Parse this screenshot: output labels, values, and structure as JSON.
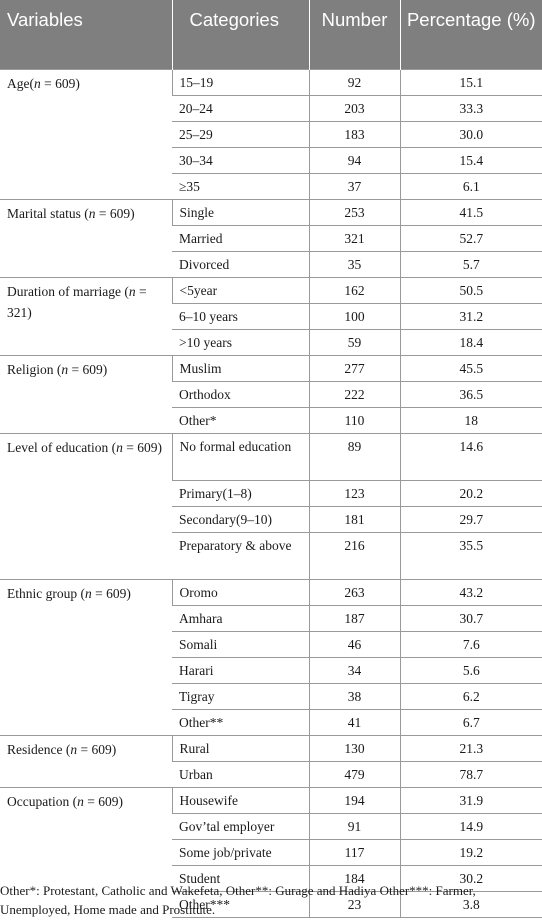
{
  "headers": [
    "Variables",
    "Categories",
    "Number",
    "Percentage (%)"
  ],
  "groups": [
    {
      "label": "Age(n = 609)",
      "rows": [
        {
          "cat": "15–19",
          "num": "92",
          "pct": "15.1"
        },
        {
          "cat": "20–24",
          "num": "203",
          "pct": "33.3"
        },
        {
          "cat": "25–29",
          "num": "183",
          "pct": "30.0"
        },
        {
          "cat": "30–34",
          "num": "94",
          "pct": "15.4"
        },
        {
          "cat": "≥35",
          "num": "37",
          "pct": "6.1"
        }
      ]
    },
    {
      "label": "Marital status (n = 609)",
      "rows": [
        {
          "cat": "Single",
          "num": "253",
          "pct": "41.5"
        },
        {
          "cat": "Married",
          "num": "321",
          "pct": "52.7"
        },
        {
          "cat": "Divorced",
          "num": "35",
          "pct": "5.7"
        }
      ]
    },
    {
      "label": "Duration of marriage (n = 321)",
      "rows": [
        {
          "cat": "<5year",
          "num": "162",
          "pct": "50.5"
        },
        {
          "cat": "6–10 years",
          "num": "100",
          "pct": "31.2"
        },
        {
          "cat": ">10 years",
          "num": "59",
          "pct": "18.4"
        }
      ]
    },
    {
      "label": "Religion (n = 609)",
      "rows": [
        {
          "cat": "Muslim",
          "num": "277",
          "pct": "45.5"
        },
        {
          "cat": "Orthodox",
          "num": "222",
          "pct": "36.5"
        },
        {
          "cat": "Other*",
          "num": "110",
          "pct": "18"
        }
      ]
    },
    {
      "label": "Level of education (n = 609)",
      "rows": [
        {
          "cat": "No formal education",
          "num": "89",
          "pct": "14.6"
        },
        {
          "cat": "Primary(1–8)",
          "num": "123",
          "pct": "20.2"
        },
        {
          "cat": "Secondary(9–10)",
          "num": "181",
          "pct": "29.7"
        },
        {
          "cat": "Preparatory & above",
          "num": "216",
          "pct": "35.5"
        }
      ]
    },
    {
      "label": "Ethnic group (n = 609)",
      "rows": [
        {
          "cat": "Oromo",
          "num": "263",
          "pct": "43.2"
        },
        {
          "cat": "Amhara",
          "num": "187",
          "pct": "30.7"
        },
        {
          "cat": "Somali",
          "num": "46",
          "pct": "7.6"
        },
        {
          "cat": "Harari",
          "num": "34",
          "pct": "5.6"
        },
        {
          "cat": "Tigray",
          "num": "38",
          "pct": "6.2"
        },
        {
          "cat": "Other**",
          "num": "41",
          "pct": "6.7"
        }
      ]
    },
    {
      "label": "Residence (n = 609)",
      "rows": [
        {
          "cat": "Rural",
          "num": "130",
          "pct": "21.3"
        },
        {
          "cat": "Urban",
          "num": "479",
          "pct": "78.7"
        }
      ]
    },
    {
      "label": "Occupation (n = 609)",
      "rows": [
        {
          "cat": "Housewife",
          "num": "194",
          "pct": "31.9"
        },
        {
          "cat": "Gov’tal employer",
          "num": "91",
          "pct": "14.9"
        },
        {
          "cat": "Some job/private",
          "num": "117",
          "pct": "19.2"
        },
        {
          "cat": "Student",
          "num": "184",
          "pct": "30.2"
        },
        {
          "cat": "Other***",
          "num": "23",
          "pct": "3.8"
        }
      ]
    }
  ],
  "footnote": "Other*: Protestant, Catholic and Wakefeta, Other**: Gurage and Hadiya Other***: Farmer, Unemployed, Home made and Prostitute.",
  "colors": {
    "header_bg": "#7f7f7f",
    "header_text": "#ffffff",
    "rule": "#9a9a9a"
  }
}
